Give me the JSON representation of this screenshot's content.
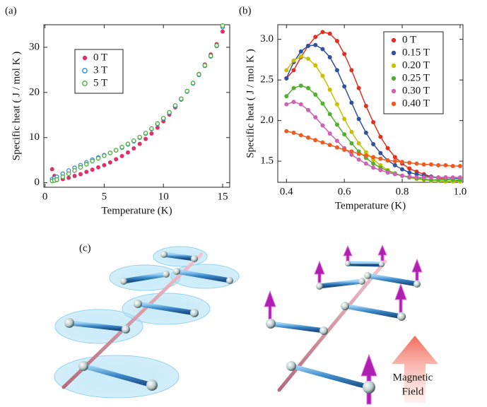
{
  "chart_data": [
    {
      "type": "scatter",
      "panel": "(a)",
      "xlabel": "Temperature (K)",
      "ylabel": "Specific heat  ( J / mol K )",
      "xlim": [
        -0.1,
        15.6
      ],
      "ylim": [
        -1,
        35
      ],
      "xticks": [
        0,
        5,
        10,
        15
      ],
      "yticks": [
        0,
        10,
        20,
        30
      ],
      "legend": "upper left",
      "lines": false,
      "x": [
        0.6,
        0.8,
        1,
        1.5,
        2,
        2.5,
        3,
        3.5,
        4,
        4.5,
        5,
        5.5,
        6,
        6.5,
        7,
        7.5,
        8,
        8.5,
        9,
        9.5,
        10,
        10.5,
        11,
        11.5,
        12,
        12.5,
        13,
        13.5,
        14,
        14.5,
        15
      ],
      "series": [
        {
          "name": "0 T",
          "color": "#e0306a",
          "marker": "filled",
          "values": [
            3,
            1.5,
            0.6,
            0.8,
            1.1,
            1.5,
            1.9,
            2.4,
            2.9,
            3.4,
            3.9,
            4.5,
            5.2,
            5.9,
            6.7,
            7.6,
            8.6,
            9.7,
            10.9,
            12.2,
            13.6,
            15.1,
            16.7,
            18.4,
            20.2,
            22.1,
            24.1,
            26.2,
            28.4,
            30.7,
            33.5
          ]
        },
        {
          "name": "3 T",
          "color": "#2a8fd0",
          "marker": "open",
          "values": [
            0.8,
            1,
            1.3,
            2,
            2.7,
            3.3,
            3.9,
            4.5,
            5.1,
            5.6,
            6.1,
            6.6,
            7.2,
            7.8,
            8.5,
            9.2,
            10,
            10.9,
            11.9,
            13,
            14.2,
            15.5,
            17,
            18.5,
            20.2,
            22,
            23.9,
            25.9,
            28,
            30.3,
            34.5
          ]
        },
        {
          "name": "5 T",
          "color": "#4caa3a",
          "marker": "open",
          "values": [
            0.4,
            0.5,
            0.7,
            1.3,
            2,
            2.7,
            3.4,
            4.1,
            4.8,
            5.4,
            6,
            6.6,
            7.2,
            7.9,
            8.6,
            9.3,
            10.1,
            11,
            12,
            13.1,
            14.3,
            15.6,
            17.1,
            18.6,
            20.3,
            22.1,
            24,
            26,
            28.1,
            30.4,
            34.8
          ]
        }
      ]
    },
    {
      "type": "scatter",
      "panel": "(b)",
      "xlabel": "Temperature (K)",
      "ylabel": "Specific heat  ( J / mol K )",
      "xlim": [
        0.37,
        1.01
      ],
      "ylim": [
        1.24,
        3.18
      ],
      "xticks": [
        0.4,
        0.6,
        0.8,
        {
          "value": 1,
          "label": "1.0"
        }
      ],
      "yticks": [
        1.5,
        {
          "value": 2,
          "label": "2.0"
        },
        2.5,
        {
          "value": 3,
          "label": "3.0"
        }
      ],
      "legend": "upper right",
      "lines": true,
      "x": [
        0.4,
        0.425,
        0.45,
        0.475,
        0.5,
        0.525,
        0.55,
        0.575,
        0.6,
        0.625,
        0.65,
        0.675,
        0.7,
        0.725,
        0.75,
        0.775,
        0.8,
        0.825,
        0.85,
        0.875,
        0.9,
        0.925,
        0.95,
        0.975,
        1
      ],
      "series": [
        {
          "name": "0 T",
          "color": "#e03020",
          "marker": "filled",
          "values": [
            2.52,
            2.62,
            2.78,
            2.92,
            3.03,
            3.09,
            3.07,
            2.98,
            2.82,
            2.62,
            2.4,
            2.18,
            1.98,
            1.8,
            1.66,
            1.55,
            1.47,
            1.41,
            1.37,
            1.34,
            1.31,
            1.29,
            1.28,
            1.27,
            1.26
          ]
        },
        {
          "name": "0.15 T",
          "color": "#3050a0",
          "marker": "filled",
          "values": [
            2.52,
            2.72,
            2.85,
            2.92,
            2.93,
            2.88,
            2.78,
            2.62,
            2.42,
            2.22,
            2.02,
            1.85,
            1.71,
            1.6,
            1.51,
            1.45,
            1.4,
            1.36,
            1.34,
            1.32,
            1.31,
            1.3,
            1.3,
            1.29,
            1.29
          ]
        },
        {
          "name": "0.20 T",
          "color": "#c8c000",
          "marker": "filled",
          "values": [
            2.62,
            2.74,
            2.79,
            2.76,
            2.68,
            2.55,
            2.38,
            2.2,
            2.02,
            1.86,
            1.72,
            1.61,
            1.52,
            1.45,
            1.39,
            1.35,
            1.32,
            1.3,
            1.28,
            1.27,
            1.26,
            1.26,
            1.25,
            1.25,
            1.25
          ]
        },
        {
          "name": "0.25 T",
          "color": "#50b030",
          "marker": "filled",
          "values": [
            2.3,
            2.4,
            2.43,
            2.4,
            2.32,
            2.21,
            2.08,
            1.95,
            1.83,
            1.72,
            1.62,
            1.54,
            1.47,
            1.42,
            1.38,
            1.35,
            1.32,
            1.3,
            1.29,
            1.28,
            1.27,
            1.27,
            1.27,
            1.27,
            1.27
          ]
        },
        {
          "name": "0.30 T",
          "color": "#d060b0",
          "marker": "filled",
          "values": [
            2.2,
            2.23,
            2.2,
            2.13,
            2.04,
            1.94,
            1.84,
            1.75,
            1.66,
            1.58,
            1.52,
            1.47,
            1.42,
            1.39,
            1.36,
            1.34,
            1.32,
            1.31,
            1.3,
            1.3,
            1.3,
            1.3,
            1.3,
            1.3,
            1.3
          ]
        },
        {
          "name": "0.40 T",
          "color": "#f05a1e",
          "marker": "filled",
          "values": [
            1.87,
            1.85,
            1.82,
            1.79,
            1.76,
            1.73,
            1.7,
            1.67,
            1.64,
            1.62,
            1.59,
            1.57,
            1.55,
            1.53,
            1.51,
            1.5,
            1.49,
            1.48,
            1.47,
            1.46,
            1.46,
            1.45,
            1.45,
            1.44,
            1.44
          ]
        }
      ]
    }
  ],
  "illustration": {
    "panel": "(c)",
    "label": [
      "Magnetic",
      "Field"
    ]
  }
}
